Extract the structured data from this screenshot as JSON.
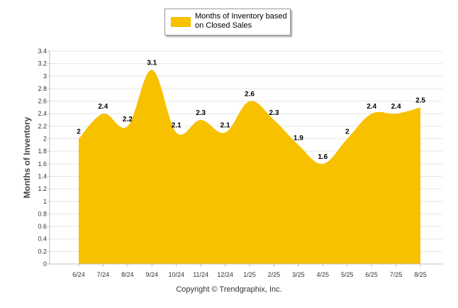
{
  "chart_data": {
    "type": "area",
    "categories": [
      "6/24",
      "7/24",
      "8/24",
      "9/24",
      "10/24",
      "11/24",
      "12/24",
      "1/25",
      "2/25",
      "3/25",
      "4/25",
      "5/25",
      "6/25",
      "7/25",
      "8/25"
    ],
    "series": [
      {
        "name": "Months of Inventory based\non Closed Sales",
        "values": [
          2,
          2.4,
          2.2,
          3.1,
          2.1,
          2.3,
          2.1,
          2.6,
          2.3,
          1.9,
          1.6,
          2,
          2.4,
          2.4,
          2.5
        ],
        "data_labels": [
          "2",
          "2.4",
          "2.2",
          "3.1",
          "2.1",
          "2.3",
          "2.1",
          "2.6",
          "2.3",
          "1.9",
          "1.6",
          "2",
          "2.4",
          "2.4",
          "2.5"
        ]
      }
    ],
    "ylabel": "Months of Inventory",
    "xlabel": "",
    "ylim": [
      0,
      3.4
    ],
    "y_ticks": [
      "0",
      "0.2",
      "0.4",
      "0.6",
      "0.8",
      "1",
      "1.2",
      "1.4",
      "1.6",
      "1.8",
      "2",
      "2.2",
      "2.4",
      "2.6",
      "2.8",
      "3",
      "3.2",
      "3.4"
    ],
    "grid": true,
    "legend": "top-center",
    "fill_color": "#F7C100"
  },
  "footer": {
    "copyright": "Copyright © Trendgraphix, Inc."
  }
}
